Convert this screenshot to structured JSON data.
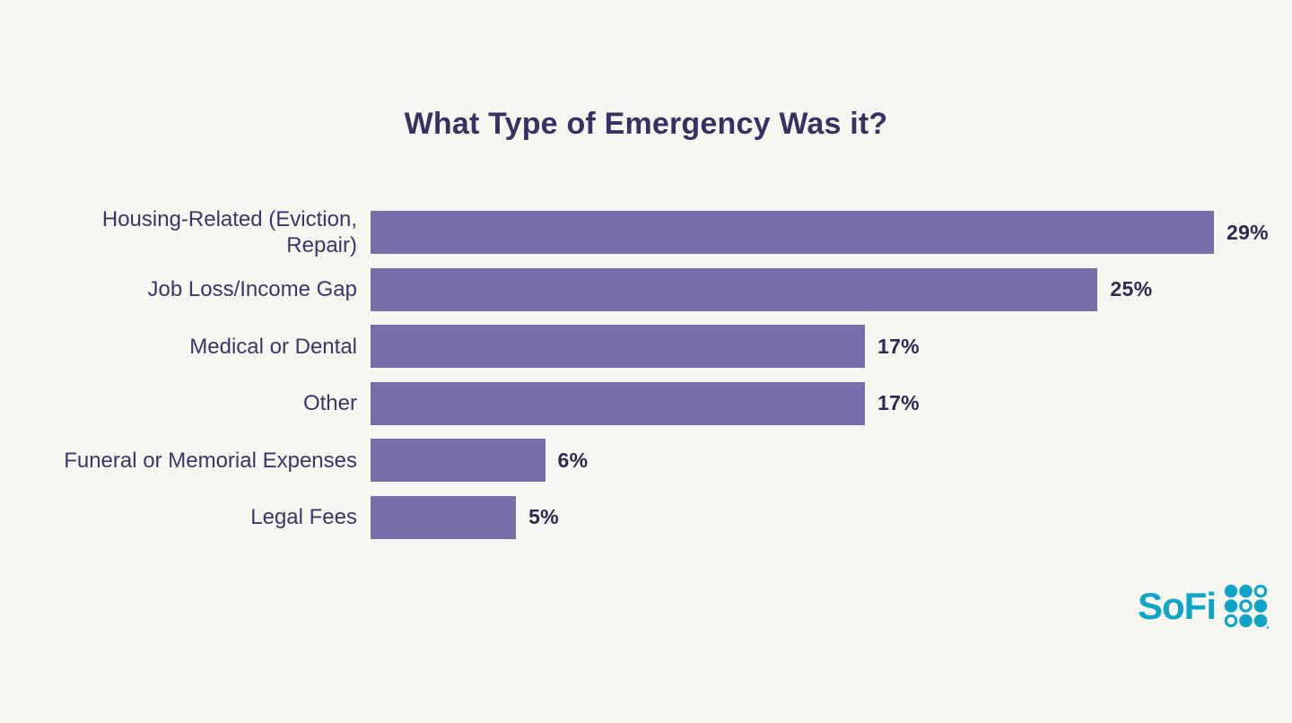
{
  "chart_data": {
    "type": "bar",
    "orientation": "horizontal",
    "title": "What Type of Emergency Was it?",
    "categories": [
      "Housing-Related (Eviction,\nRepair)",
      "Job Loss/Income Gap",
      "Medical or Dental",
      "Other",
      "Funeral or Memorial Expenses",
      "Legal Fees"
    ],
    "values": [
      29,
      25,
      17,
      17,
      6,
      5
    ],
    "value_labels": [
      "29%",
      "25%",
      "17%",
      "17%",
      "6%",
      "5%"
    ],
    "xlabel": "",
    "ylabel": "",
    "xlim": [
      0,
      29
    ],
    "grid": false,
    "legend": "none",
    "bar_color": "#766EA8",
    "category_label_color": "#3D3568",
    "value_label_color": "#2E2853",
    "title_color": "#393164"
  },
  "branding": {
    "logo_text": "SoFi",
    "logo_color": "#0EA5C6",
    "logo_dots": [
      [
        "filled",
        "filled",
        "ring"
      ],
      [
        "filled",
        "ring",
        "filled"
      ],
      [
        "ring",
        "filled",
        "filled"
      ]
    ]
  },
  "colors": {
    "background": "#F8F6F1",
    "axis_line": "#FDFCF9"
  }
}
